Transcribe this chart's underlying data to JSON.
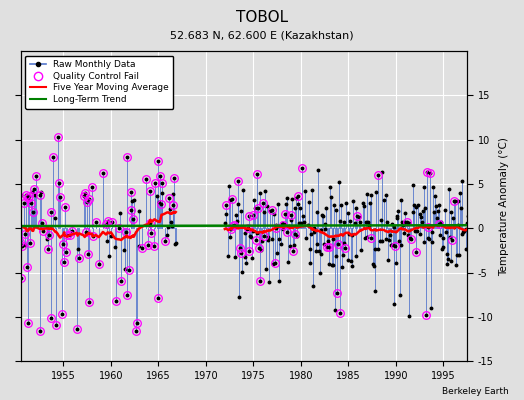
{
  "title": "TOBOL",
  "subtitle": "52.683 N, 62.600 E (Kazakhstan)",
  "ylabel": "Temperature Anomaly (°C)",
  "watermark": "Berkeley Earth",
  "xlim": [
    1950.5,
    1997.5
  ],
  "ylim": [
    -15,
    20
  ],
  "yticks_right": [
    -15,
    -10,
    -5,
    0,
    5,
    10,
    15
  ],
  "xticks": [
    1955,
    1960,
    1965,
    1970,
    1975,
    1980,
    1985,
    1990,
    1995
  ],
  "bg_color": "#e0e0e0",
  "plot_bg_color": "#e0e0e0",
  "raw_color": "#5577cc",
  "qc_color": "magenta",
  "ma_color": "red",
  "trend_color": "green",
  "grid_color": "white",
  "seed": 42,
  "gap_start": 1967.0,
  "gap_end": 1972.0,
  "years_start": 1950,
  "years_end": 1997
}
